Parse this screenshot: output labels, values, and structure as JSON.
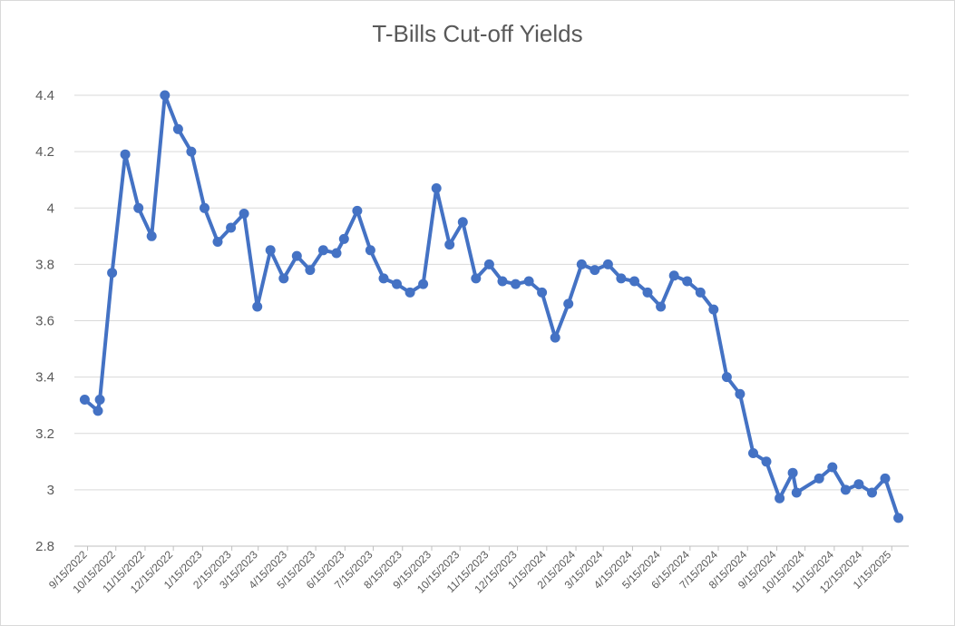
{
  "chart_data": {
    "type": "line",
    "title": "T-Bills Cut-off Yields",
    "xlabel": "",
    "ylabel": "",
    "ylim": [
      2.8,
      4.4
    ],
    "yticks": [
      "4.4",
      "4.2",
      "4",
      "3.8",
      "3.6",
      "3.4",
      "3.2",
      "3",
      "2.8"
    ],
    "xticks": [
      "9/15/2022",
      "10/15/2022",
      "11/15/2022",
      "12/15/2022",
      "1/15/2023",
      "2/15/2023",
      "3/15/2023",
      "4/15/2023",
      "5/15/2023",
      "6/15/2023",
      "7/15/2023",
      "8/15/2023",
      "9/15/2023",
      "10/15/2023",
      "11/15/2023",
      "12/15/2023",
      "1/15/2024",
      "2/15/2024",
      "3/15/2024",
      "4/15/2024",
      "5/15/2024",
      "6/15/2024",
      "7/15/2024",
      "8/15/2024",
      "9/15/2024",
      "10/15/2024",
      "11/15/2024",
      "12/15/2024",
      "1/15/2025"
    ],
    "grid": true,
    "legend": "none",
    "series": [
      {
        "color": "#4472c4",
        "points": [
          [
            "2022-09-12",
            3.32
          ],
          [
            "2022-09-26",
            3.28
          ],
          [
            "2022-09-28",
            3.32
          ],
          [
            "2022-10-11",
            3.77
          ],
          [
            "2022-10-25",
            4.19
          ],
          [
            "2022-11-08",
            4.0
          ],
          [
            "2022-11-22",
            3.9
          ],
          [
            "2022-12-06",
            4.4
          ],
          [
            "2022-12-20",
            4.28
          ],
          [
            "2023-01-03",
            4.2
          ],
          [
            "2023-01-17",
            4.0
          ],
          [
            "2023-01-31",
            3.88
          ],
          [
            "2023-02-14",
            3.93
          ],
          [
            "2023-02-28",
            3.98
          ],
          [
            "2023-03-14",
            3.65
          ],
          [
            "2023-03-28",
            3.85
          ],
          [
            "2023-04-11",
            3.75
          ],
          [
            "2023-04-25",
            3.83
          ],
          [
            "2023-05-09",
            3.78
          ],
          [
            "2023-05-23",
            3.85
          ],
          [
            "2023-06-06",
            3.84
          ],
          [
            "2023-06-14",
            3.89
          ],
          [
            "2023-06-28",
            3.99
          ],
          [
            "2023-07-12",
            3.85
          ],
          [
            "2023-07-26",
            3.75
          ],
          [
            "2023-08-09",
            3.73
          ],
          [
            "2023-08-23",
            3.7
          ],
          [
            "2023-09-06",
            3.73
          ],
          [
            "2023-09-20",
            4.07
          ],
          [
            "2023-10-04",
            3.87
          ],
          [
            "2023-10-18",
            3.95
          ],
          [
            "2023-11-01",
            3.75
          ],
          [
            "2023-11-15",
            3.8
          ],
          [
            "2023-11-29",
            3.74
          ],
          [
            "2023-12-13",
            3.73
          ],
          [
            "2023-12-27",
            3.74
          ],
          [
            "2024-01-10",
            3.7
          ],
          [
            "2024-01-24",
            3.54
          ],
          [
            "2024-02-07",
            3.66
          ],
          [
            "2024-02-21",
            3.8
          ],
          [
            "2024-03-06",
            3.78
          ],
          [
            "2024-03-20",
            3.8
          ],
          [
            "2024-04-03",
            3.75
          ],
          [
            "2024-04-17",
            3.74
          ],
          [
            "2024-05-01",
            3.7
          ],
          [
            "2024-05-15",
            3.65
          ],
          [
            "2024-05-29",
            3.76
          ],
          [
            "2024-06-12",
            3.74
          ],
          [
            "2024-06-26",
            3.7
          ],
          [
            "2024-07-10",
            3.64
          ],
          [
            "2024-07-24",
            3.4
          ],
          [
            "2024-08-07",
            3.34
          ],
          [
            "2024-08-21",
            3.13
          ],
          [
            "2024-09-04",
            3.1
          ],
          [
            "2024-09-18",
            2.97
          ],
          [
            "2024-10-02",
            3.06
          ],
          [
            "2024-10-06",
            2.99
          ],
          [
            "2024-10-30",
            3.04
          ],
          [
            "2024-11-13",
            3.08
          ],
          [
            "2024-11-27",
            3.0
          ],
          [
            "2024-12-11",
            3.02
          ],
          [
            "2024-12-25",
            2.99
          ],
          [
            "2025-01-08",
            3.04
          ],
          [
            "2025-01-22",
            2.9
          ]
        ]
      }
    ]
  }
}
